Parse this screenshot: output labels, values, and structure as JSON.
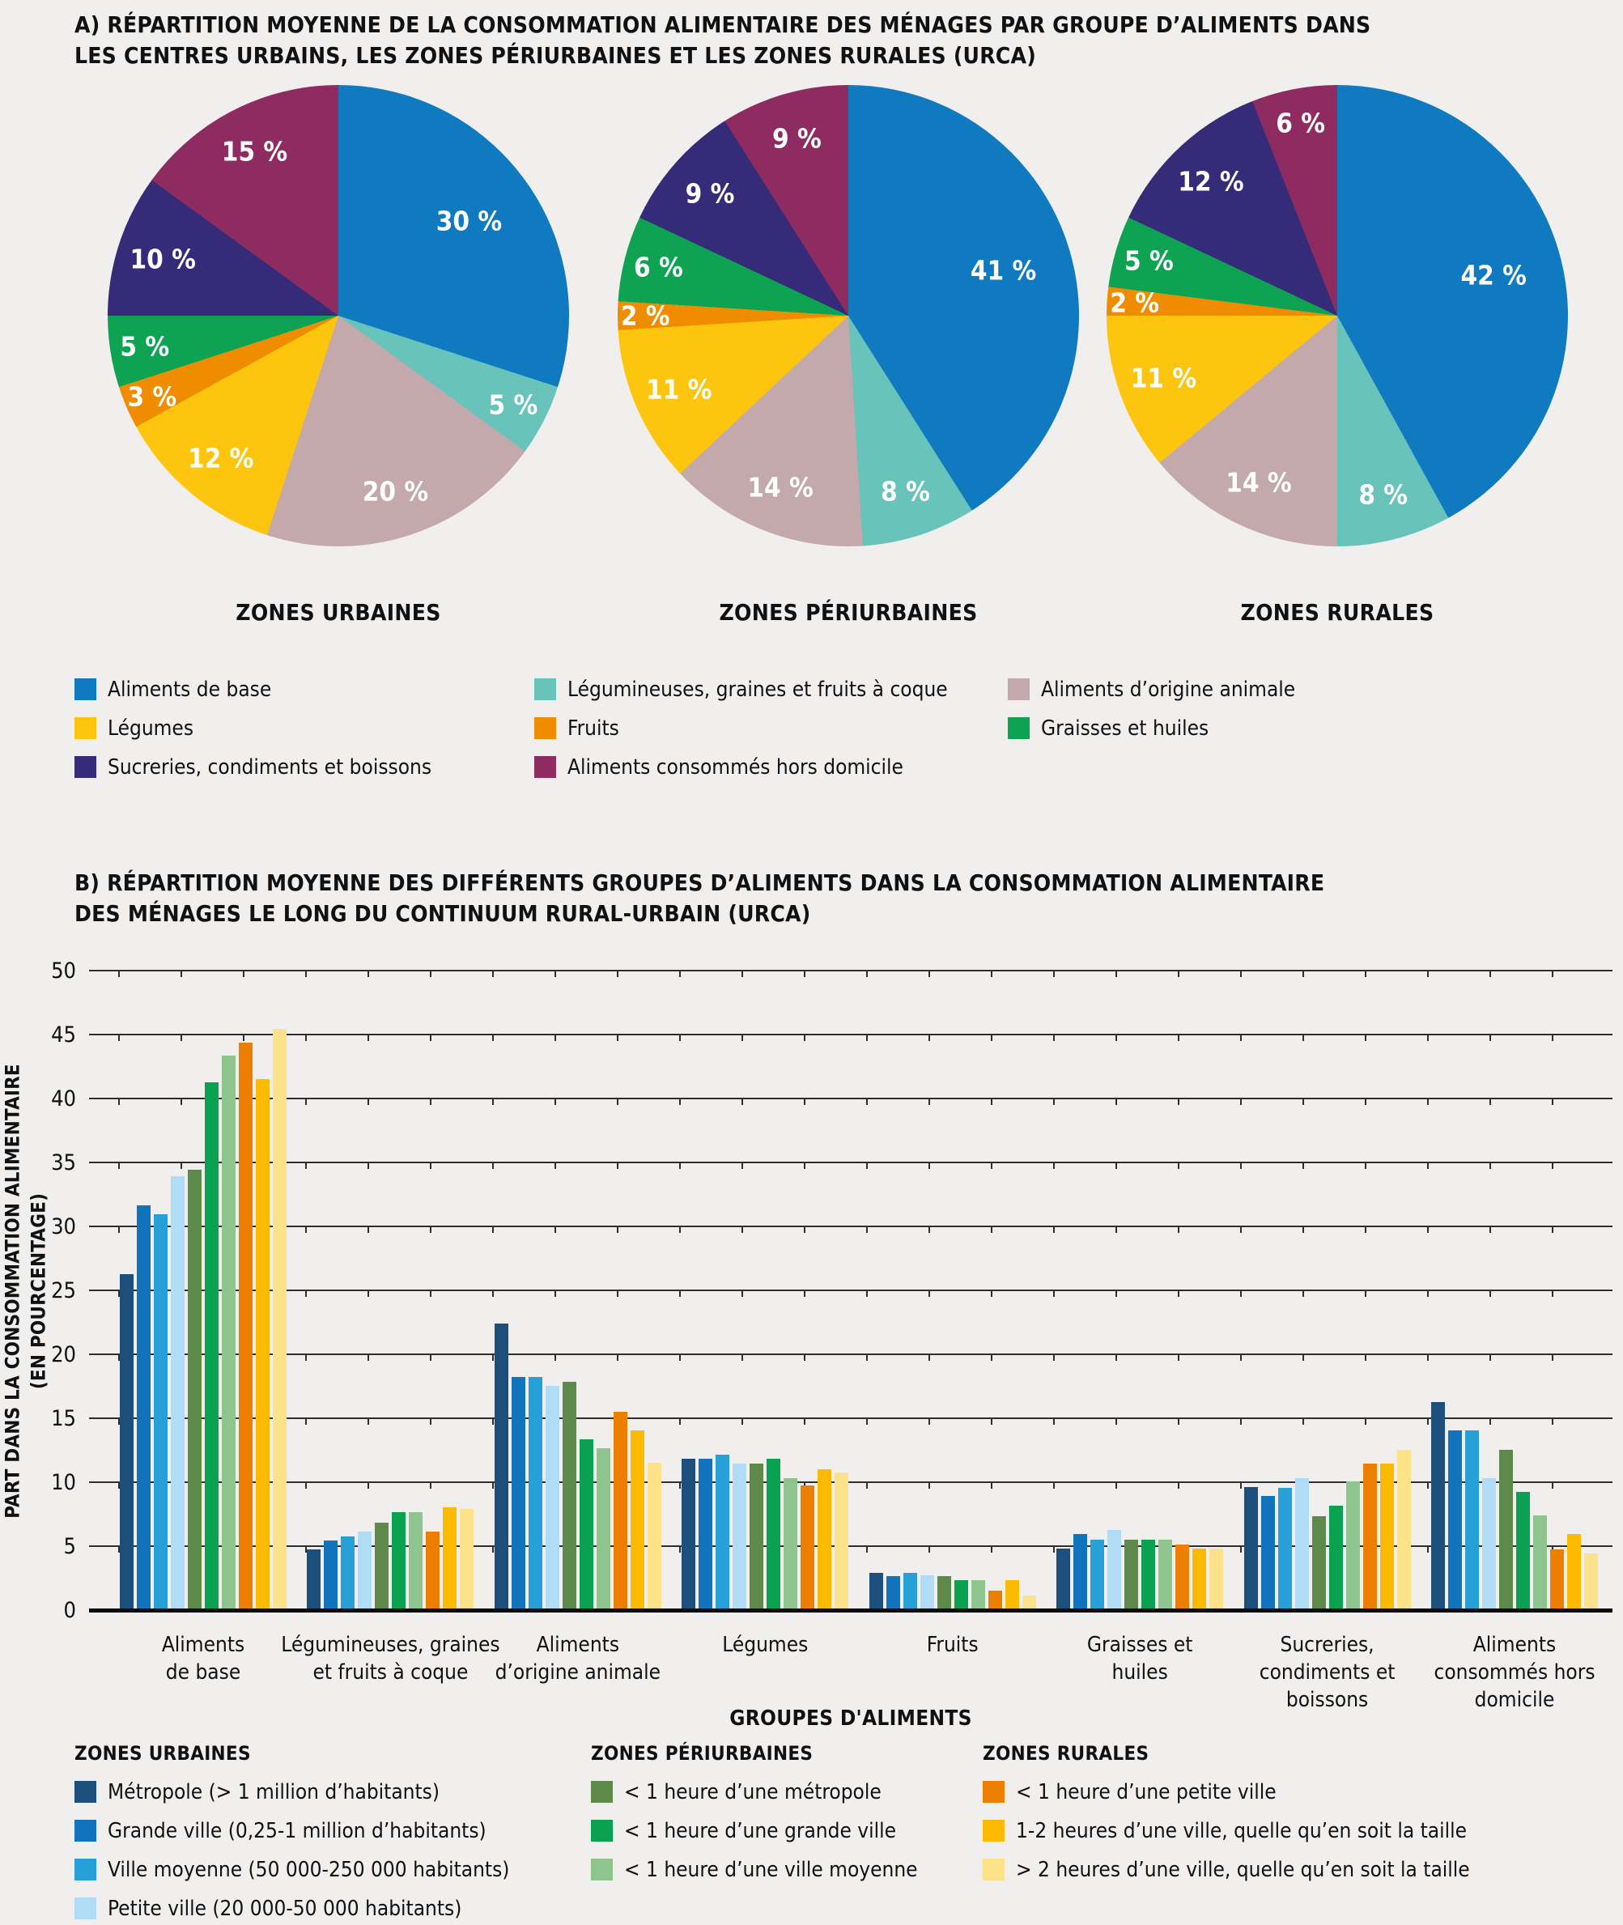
{
  "background": "#f0efed",
  "panel_a": {
    "title": "A) RÉPARTITION MOYENNE DE LA CONSOMMATION ALIMENTAIRE DES MÉNAGES PAR GROUPE D’ALIMENTS DANS\nLES CENTRES URBAINS, LES ZONES PÉRIURBAINES ET LES ZONES RURALES (URCA)",
    "legend_columns": [
      [
        {
          "label": "Aliments de base",
          "color": "#0f7ac0"
        },
        {
          "label": "Légumes",
          "color": "#fec50f"
        },
        {
          "label": "Sucreries, condiments et boissons",
          "color": "#352b78"
        }
      ],
      [
        {
          "label": "Légumineuses, graines et fruits à coque",
          "color": "#68c3ba"
        },
        {
          "label": "Fruits",
          "color": "#f08c00"
        },
        {
          "label": "Aliments consommés hors domicile",
          "color": "#8e2c62"
        }
      ],
      [
        {
          "label": "Aliments d’origine animale",
          "color": "#c3a8ac"
        },
        {
          "label": "Graisses et huiles",
          "color": "#0ea353"
        }
      ]
    ]
  },
  "panel_b": {
    "title": "B) RÉPARTITION MOYENNE DES DIFFÉRENTS GROUPES D’ALIMENTS DANS LA CONSOMMATION ALIMENTAIRE\nDES MÉNAGES LE LONG DU CONTINUUM RURAL-URBAIN (URCA)",
    "xlabel": "GROUPES D'ALIMENTS",
    "ylabel": "PART DANS LA CONSOMMATION ALIMENTAIRE\n(EN POURCENTAGE)",
    "legend_columns": [
      {
        "header": "ZONES URBAINES",
        "items": [
          {
            "label": "Métropole (> 1 million d’habitants)",
            "color": "#1d4f7c"
          },
          {
            "label": "Grande ville (0,25-1 million d’habitants)",
            "color": "#1173bc"
          },
          {
            "label": "Ville moyenne (50 000-250 000 habitants)",
            "color": "#27a0d8"
          },
          {
            "label": "Petite ville (20 000-50 000 habitants)",
            "color": "#b1dcf5"
          }
        ]
      },
      {
        "header": "ZONES PÉRIURBAINES",
        "items": [
          {
            "label": "< 1 heure d’une métropole",
            "color": "#5d8a4b"
          },
          {
            "label": "< 1 heure d’une grande ville",
            "color": "#0aa250"
          },
          {
            "label": "< 1 heure d’une ville moyenne",
            "color": "#90c48f"
          }
        ]
      },
      {
        "header": "ZONES RURALES",
        "items": [
          {
            "label": "< 1 heure d’une petite ville",
            "color": "#ec7e00"
          },
          {
            "label": "1-2 heures d’une ville, quelle qu’en soit la taille",
            "color": "#fcba00"
          },
          {
            "label": "> 2 heures d’une ville, quelle qu’en soit la taille",
            "color": "#fce28a"
          }
        ]
      }
    ]
  },
  "chart_data": [
    {
      "type": "pie",
      "title": "ZONES URBAINES",
      "unit": "%",
      "start_angle": "12 o'clock, clockwise",
      "labels": [
        "Aliments de base",
        "Légumineuses, graines et fruits à coque",
        "Aliments d’origine animale",
        "Légumes",
        "Fruits",
        "Graisses et huiles",
        "Sucreries, condiments et boissons",
        "Aliments consommés hors domicile"
      ],
      "colors": [
        "#0f7ac0",
        "#68c3ba",
        "#c3a8ac",
        "#fec50f",
        "#f08c00",
        "#0ea353",
        "#352b78",
        "#8e2c62"
      ],
      "values": [
        30,
        5,
        20,
        12,
        3,
        5,
        10,
        15
      ]
    },
    {
      "type": "pie",
      "title": "ZONES PÉRIURBAINES",
      "unit": "%",
      "start_angle": "12 o'clock, clockwise",
      "labels": [
        "Aliments de base",
        "Légumineuses, graines et fruits à coque",
        "Aliments d’origine animale",
        "Légumes",
        "Fruits",
        "Graisses et huiles",
        "Sucreries, condiments et boissons",
        "Aliments consommés hors domicile"
      ],
      "colors": [
        "#0f7ac0",
        "#68c3ba",
        "#c3a8ac",
        "#fec50f",
        "#f08c00",
        "#0ea353",
        "#352b78",
        "#8e2c62"
      ],
      "values": [
        41,
        8,
        14,
        11,
        2,
        6,
        9,
        9
      ]
    },
    {
      "type": "pie",
      "title": "ZONES RURALES",
      "unit": "%",
      "start_angle": "12 o'clock, clockwise",
      "labels": [
        "Aliments de base",
        "Légumineuses, graines et fruits à coque",
        "Aliments d’origine animale",
        "Légumes",
        "Fruits",
        "Graisses et huiles",
        "Sucreries, condiments et boissons",
        "Aliments consommés hors domicile"
      ],
      "colors": [
        "#0f7ac0",
        "#68c3ba",
        "#c3a8ac",
        "#fec50f",
        "#f08c00",
        "#0ea353",
        "#352b78",
        "#8e2c62"
      ],
      "values": [
        42,
        8,
        14,
        11,
        2,
        5,
        12,
        6
      ]
    },
    {
      "type": "bar",
      "title": "B) Répartition moyenne des différents groupes d’aliments dans la consommation alimentaire des ménages le long du continuum rural-urbain (URCA)",
      "xlabel": "GROUPES D'ALIMENTS",
      "ylabel": "PART DANS LA CONSOMMATION ALIMENTAIRE (EN POURCENTAGE)",
      "ylim": [
        0,
        50
      ],
      "ytick_step": 5,
      "grid": true,
      "legend_position": "bottom",
      "categories": [
        "Aliments de base",
        "Légumineuses, graines et fruits à coque",
        "Aliments d’origine animale",
        "Légumes",
        "Fruits",
        "Graisses et huiles",
        "Sucreries, condiments et boissons",
        "Aliments consommés hors domicile"
      ],
      "category_labels_display": [
        "Aliments\nde base",
        "Légumineuses, graines\net fruits à coque",
        "Aliments\nd’origine animale",
        "Légumes",
        "Fruits",
        "Graisses et\nhuiles",
        "Sucreries,\ncondiments et\nboissons",
        "Aliments\nconsommés hors\ndomicile"
      ],
      "series": [
        {
          "name": "Métropole (> 1 million d’habitants)",
          "color": "#1d4f7c",
          "values": [
            26.3,
            4.8,
            22.5,
            11.9,
            3.0,
            4.9,
            9.7,
            16.3
          ]
        },
        {
          "name": "Grande ville (0,25-1 million d’habitants)",
          "color": "#1173bc",
          "values": [
            31.7,
            5.5,
            18.3,
            11.9,
            2.7,
            6.0,
            9.0,
            14.1
          ]
        },
        {
          "name": "Ville moyenne (50 000-250 000 habitants)",
          "color": "#27a0d8",
          "values": [
            31.0,
            5.8,
            18.3,
            12.2,
            3.0,
            5.6,
            9.6,
            14.1
          ]
        },
        {
          "name": "Petite ville (20 000-50 000 habitants)",
          "color": "#b1dcf5",
          "values": [
            34.0,
            6.2,
            17.6,
            11.5,
            2.8,
            6.3,
            10.4,
            10.4
          ]
        },
        {
          "name": "< 1 heure d’une métropole",
          "color": "#5d8a4b",
          "values": [
            34.5,
            6.9,
            17.9,
            11.5,
            2.7,
            5.6,
            7.4,
            12.6
          ]
        },
        {
          "name": "< 1 heure d’une grande ville",
          "color": "#0aa250",
          "values": [
            41.3,
            7.7,
            13.4,
            11.9,
            2.4,
            5.6,
            8.2,
            9.3
          ]
        },
        {
          "name": "< 1 heure d’une ville moyenne",
          "color": "#90c48f",
          "values": [
            43.4,
            7.7,
            12.7,
            10.4,
            2.4,
            5.6,
            10.1,
            7.5
          ]
        },
        {
          "name": "< 1 heure d’une petite ville",
          "color": "#ec7e00",
          "values": [
            44.4,
            6.2,
            15.6,
            9.8,
            1.6,
            5.2,
            11.5,
            4.8
          ]
        },
        {
          "name": "1-2 heures d’une ville, quelle qu’en soit la taille",
          "color": "#fcba00",
          "values": [
            41.6,
            8.1,
            14.1,
            11.1,
            2.4,
            4.9,
            11.5,
            6.0
          ]
        },
        {
          "name": "> 2 heures d’une ville, quelle qu’en soit la taille",
          "color": "#fce28a",
          "values": [
            45.5,
            8.0,
            11.6,
            10.8,
            1.2,
            4.9,
            12.6,
            4.5
          ]
        }
      ]
    }
  ]
}
